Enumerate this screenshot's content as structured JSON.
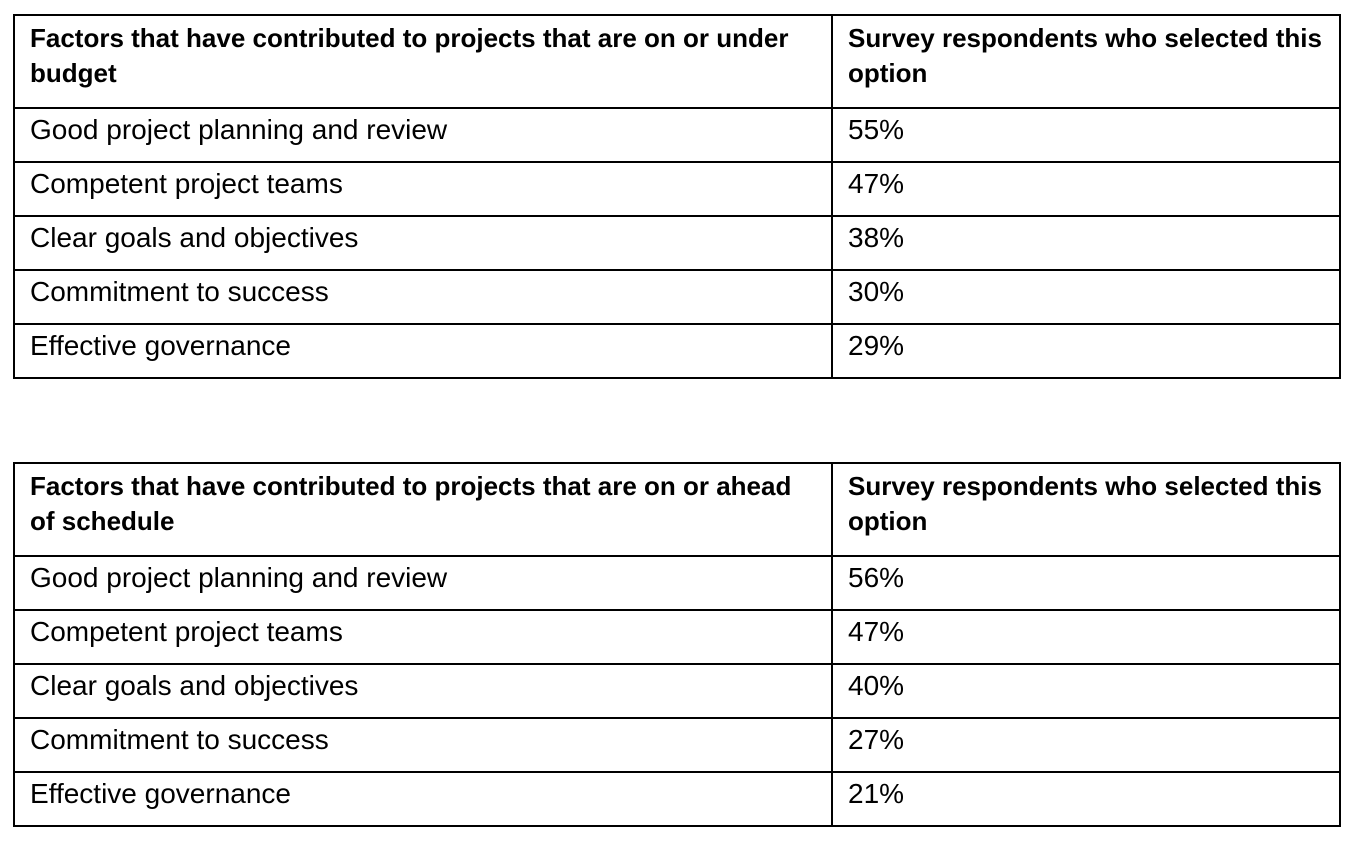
{
  "document": {
    "background": "#ffffff",
    "text_color": "#000000",
    "border_color": "#000000"
  },
  "tables": [
    {
      "id": "on-or-under-budget",
      "columns": {
        "factor": "Factors that have contributed to projects that are on or under\nbudget",
        "respondents": "Survey respondents who selected this\noption"
      },
      "rows": [
        {
          "factor": "Good project planning and review",
          "value": "55%"
        },
        {
          "factor": "Competent project teams",
          "value": "47%"
        },
        {
          "factor": "Clear goals and objectives",
          "value": "38%"
        },
        {
          "factor": "Commitment to success",
          "value": "30%"
        },
        {
          "factor": "Effective governance",
          "value": "29%"
        }
      ]
    },
    {
      "id": "on-or-ahead-of-schedule",
      "columns": {
        "factor": "Factors that have contributed to projects that are on or ahead\nof schedule",
        "respondents": "Survey respondents who selected this\noption"
      },
      "rows": [
        {
          "factor": "Good project planning and review",
          "value": "56%"
        },
        {
          "factor": "Competent project teams",
          "value": "47%"
        },
        {
          "factor": "Clear goals and objectives",
          "value": "40%"
        },
        {
          "factor": "Commitment to success",
          "value": "27%"
        },
        {
          "factor": "Effective governance",
          "value": "21%"
        }
      ]
    }
  ],
  "chart_data": [
    {
      "type": "table",
      "title": "Factors that have contributed to projects that are on or under budget",
      "columns": [
        "Factors that have contributed to projects that are on or under budget",
        "Survey respondents who selected this option"
      ],
      "categories": [
        "Good project planning and review",
        "Competent project teams",
        "Clear goals and objectives",
        "Commitment to success",
        "Effective governance"
      ],
      "values": [
        55,
        47,
        38,
        30,
        29
      ],
      "unit": "%"
    },
    {
      "type": "table",
      "title": "Factors that have contributed to projects that are on or ahead of schedule",
      "columns": [
        "Factors that have contributed to projects that are on or ahead of schedule",
        "Survey respondents who selected this option"
      ],
      "categories": [
        "Good project planning and review",
        "Competent project teams",
        "Clear goals and objectives",
        "Commitment to success",
        "Effective governance"
      ],
      "values": [
        56,
        47,
        40,
        27,
        21
      ],
      "unit": "%"
    }
  ]
}
